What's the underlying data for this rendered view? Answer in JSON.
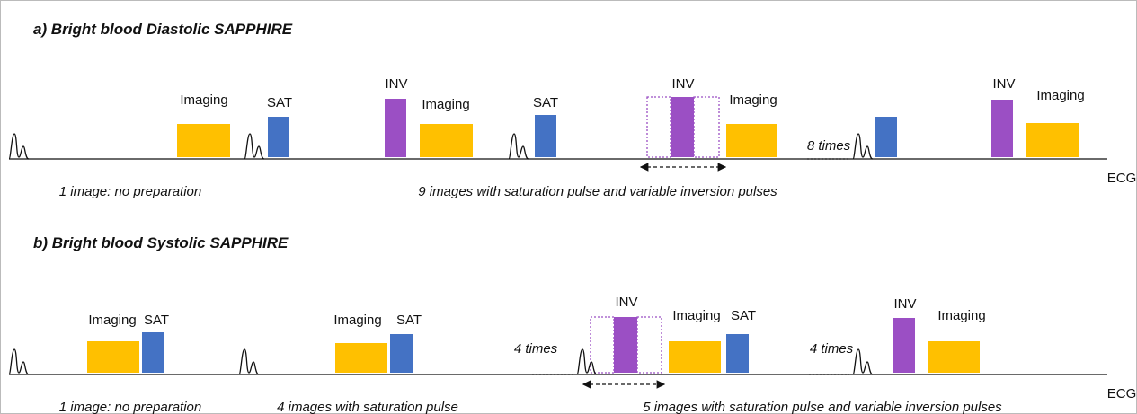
{
  "panels": [
    {
      "title": "a) Bright blood Diastolic SAPPHIRE",
      "pulse_labels": [
        "Imaging",
        "SAT",
        "INV",
        "Imaging",
        "SAT",
        "INV",
        "Imaging",
        "INV",
        "Imaging"
      ],
      "repeat_label": "8 times",
      "annotations": [
        "1 image: no preparation",
        "9 images with saturation pulse and variable inversion pulses"
      ],
      "ecg_label": "ECG"
    },
    {
      "title": "b) Bright blood Systolic SAPPHIRE",
      "pulse_labels": [
        "Imaging",
        "SAT",
        "Imaging",
        "SAT",
        "INV",
        "Imaging",
        "SAT",
        "INV",
        "Imaging"
      ],
      "repeat_labels": [
        "4 times",
        "4 times"
      ],
      "annotations": [
        "1 image: no preparation",
        "4 images with saturation pulse",
        "5 images with saturation pulse and variable inversion pulses"
      ],
      "ecg_label": "ECG"
    }
  ]
}
